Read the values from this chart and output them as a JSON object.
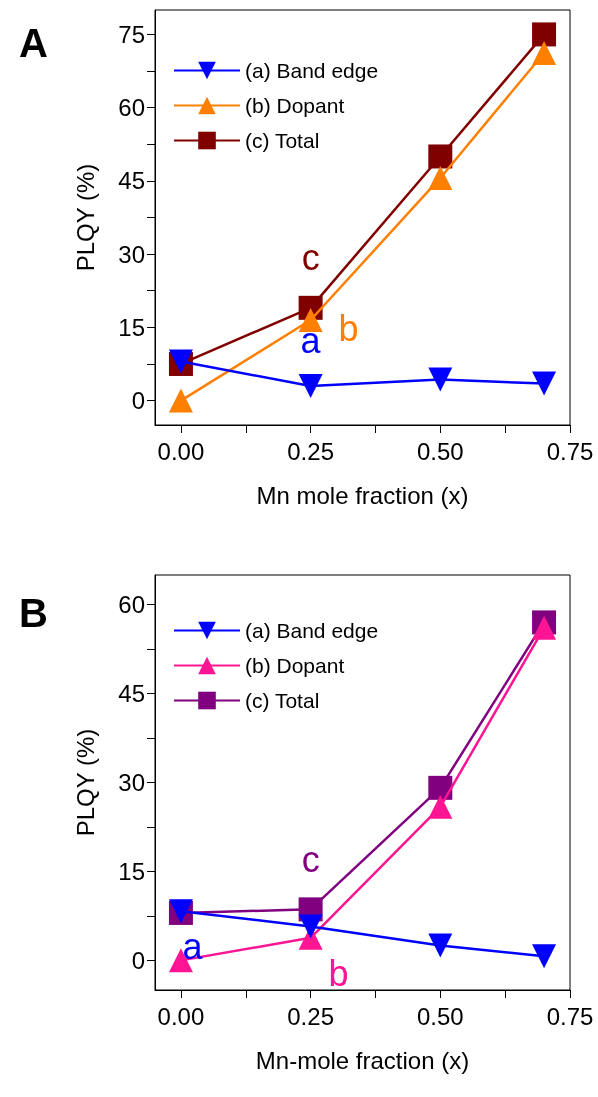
{
  "chart_data": [
    {
      "type": "line",
      "title": "A",
      "xlabel": "Mn mole fraction (x)",
      "ylabel": "PLQY (%)",
      "x": [
        0,
        0.25,
        0.5,
        0.7
      ],
      "series": [
        {
          "name": "(a) Band edge",
          "color": "#0000ff",
          "marker": "triangle-down",
          "values": [
            8,
            3,
            4.3,
            3.5
          ]
        },
        {
          "name": "(b) Dopant",
          "color": "#ff8000",
          "marker": "triangle",
          "values": [
            0,
            16.5,
            45.6,
            71.2
          ]
        },
        {
          "name": "(c) Total",
          "color": "#800000",
          "marker": "square",
          "values": [
            7.5,
            19,
            50,
            75
          ]
        }
      ],
      "annotations": [
        "a",
        "b",
        "c"
      ],
      "xlim": [
        -0.05,
        0.75
      ],
      "xticks": [
        {
          "value": 0,
          "label": "0.00"
        },
        {
          "value": 0.125,
          "label": null
        },
        {
          "value": 0.25,
          "label": "0.25"
        },
        {
          "value": 0.375,
          "label": null
        },
        {
          "value": 0.5,
          "label": "0.50"
        },
        {
          "value": 0.625,
          "label": null
        },
        {
          "value": 0.75,
          "label": "0.75"
        }
      ],
      "ylim": [
        -5,
        80
      ],
      "yticks": [
        0,
        {
          "value": 7.5,
          "label": null
        },
        15,
        {
          "value": 22.5,
          "label": null
        },
        30,
        {
          "value": 37.5,
          "label": null
        },
        45,
        {
          "value": 52.5,
          "label": null
        },
        60,
        {
          "value": 67.5,
          "label": null
        },
        75
      ],
      "grid": false,
      "legend": "top left",
      "line_style": "solid"
    },
    {
      "type": "line",
      "title": "B",
      "xlabel": "Mn-mole fraction (x)",
      "ylabel": "PLQY (%)",
      "x": [
        0,
        0.25,
        0.5,
        0.7
      ],
      "series": [
        {
          "name": "(a) Band edge",
          "color": "#0000ff",
          "marker": "triangle-down",
          "values": [
            8.3,
            5.7,
            2.5,
            0.7
          ]
        },
        {
          "name": "(b) Dopant",
          "color": "#ff1493",
          "marker": "triangle",
          "values": [
            0,
            3.8,
            25.9,
            56.1
          ]
        },
        {
          "name": "(c) Total",
          "color": "#800080",
          "marker": "square",
          "values": [
            8,
            8.6,
            29.1,
            57
          ]
        }
      ],
      "annotations": [
        "a",
        "b",
        "c"
      ],
      "xlim": [
        -0.05,
        0.75
      ],
      "xticks": [
        {
          "value": 0,
          "label": "0.00"
        },
        {
          "value": 0.125,
          "label": null
        },
        {
          "value": 0.25,
          "label": "0.25"
        },
        {
          "value": 0.375,
          "label": null
        },
        {
          "value": 0.5,
          "label": "0.50"
        },
        {
          "value": 0.625,
          "label": null
        },
        {
          "value": 0.75,
          "label": "0.75"
        }
      ],
      "ylim": [
        -5,
        65
      ],
      "yticks": [
        0,
        {
          "value": 7.5,
          "label": null
        },
        15,
        {
          "value": 22.5,
          "label": null
        },
        30,
        {
          "value": 37.5,
          "label": null
        },
        45,
        {
          "value": 52.5,
          "label": null
        },
        60
      ],
      "grid": false,
      "legend": "top left",
      "line_style": "solid"
    }
  ]
}
